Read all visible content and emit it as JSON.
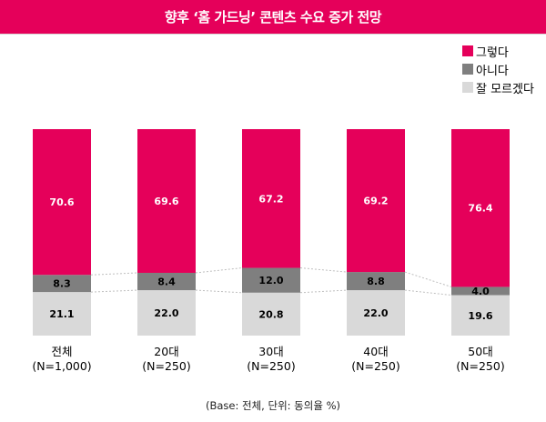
{
  "title": "향후 ‘홈 가드닝’ 콘텐츠 수요 증가 전망",
  "footnote": "(Base: 전체, 단위: 동의율 %)",
  "colors": {
    "title_bg": "#e5005a",
    "yes": "#e5005a",
    "no": "#7f7f7f",
    "unsure": "#d9d9d9"
  },
  "chart_data": {
    "type": "bar",
    "stacked": true,
    "percent_stacked": true,
    "categories": [
      [
        "전체",
        "(N=1,000)"
      ],
      [
        "20대",
        "(N=250)"
      ],
      [
        "30대",
        "(N=250)"
      ],
      [
        "40대",
        "(N=250)"
      ],
      [
        "50대",
        "(N=250)"
      ]
    ],
    "series": [
      {
        "name": "잘 모르겠다",
        "values": [
          21.1,
          22.0,
          20.8,
          22.0,
          19.6
        ],
        "color": "#d9d9d9"
      },
      {
        "name": "아니다",
        "values": [
          8.3,
          8.4,
          12.0,
          8.8,
          4.0
        ],
        "color": "#7f7f7f"
      },
      {
        "name": "그렇다",
        "values": [
          70.6,
          69.6,
          67.2,
          69.2,
          76.4
        ],
        "color": "#e5005a"
      }
    ],
    "legend_order": [
      "그렇다",
      "아니다",
      "잘 모르겠다"
    ],
    "legend_position": "top-right",
    "series_lines": true,
    "grid": false
  }
}
